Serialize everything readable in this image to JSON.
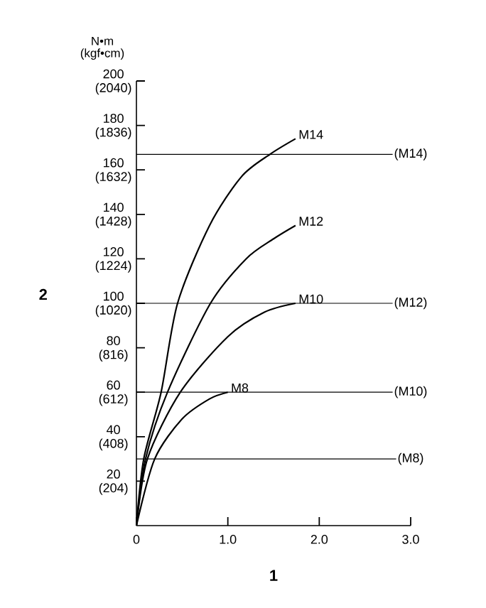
{
  "chart_data": {
    "type": "line",
    "xlabel": "1",
    "y2label": "2",
    "xlim": [
      0,
      3
    ],
    "ylim": [
      0,
      200
    ],
    "xticks": [
      0,
      {
        "value": 1,
        "label": "1.0"
      },
      {
        "value": 2,
        "label": "2.0"
      },
      {
        "value": 3,
        "label": "3.0"
      }
    ],
    "yticks": [
      20,
      40,
      60,
      80,
      100,
      120,
      140,
      160,
      180,
      200
    ],
    "y2lim": [
      0,
      2040
    ],
    "y2ticks": [
      {
        "value": 204,
        "label": "(204)"
      },
      {
        "value": 408,
        "label": "(408)"
      },
      {
        "value": 612,
        "label": "(612)"
      },
      {
        "value": 816,
        "label": "(816)"
      },
      {
        "value": 1020,
        "label": "(1020)"
      },
      {
        "value": 1224,
        "label": "(1224)"
      },
      {
        "value": 1428,
        "label": "(1428)"
      },
      {
        "value": 1632,
        "label": "(1632)"
      },
      {
        "value": 1836,
        "label": "(1836)"
      },
      {
        "value": 2040,
        "label": "(2040)"
      }
    ],
    "annotations": [
      "N•m (kgf•cm)"
    ],
    "marker": "none",
    "line_style": "solid",
    "grid": false,
    "series": [
      {
        "name": "M14",
        "color": "#000000",
        "x": [
          0,
          0.08,
          0.27,
          0.45,
          0.8,
          1.15,
          1.46,
          1.74
        ],
        "values": [
          0,
          30,
          60,
          100,
          135,
          157,
          167,
          174
        ]
      },
      {
        "name": "M12",
        "color": "#000000",
        "x": [
          0,
          0.1,
          0.34,
          0.81,
          1.2,
          1.5,
          1.74
        ],
        "values": [
          0,
          30,
          60,
          100,
          120,
          129,
          135
        ]
      },
      {
        "name": "M10",
        "color": "#000000",
        "x": [
          0,
          0.12,
          0.48,
          1.0,
          1.4,
          1.74
        ],
        "values": [
          0,
          30,
          60,
          85,
          96,
          100
        ]
      },
      {
        "name": "M8",
        "color": "#000000",
        "x": [
          0,
          0.2,
          0.5,
          0.8,
          1.0
        ],
        "values": [
          0,
          30,
          48,
          57,
          60
        ]
      }
    ],
    "ref_lines": [
      {
        "axis": "y",
        "value": 167,
        "label": "(M14)"
      },
      {
        "axis": "y",
        "value": 100,
        "label": "(M12)"
      },
      {
        "axis": "y",
        "value": 60,
        "label": "(M10)"
      },
      {
        "axis": "y",
        "value": 30,
        "label": "(M8)"
      }
    ]
  }
}
